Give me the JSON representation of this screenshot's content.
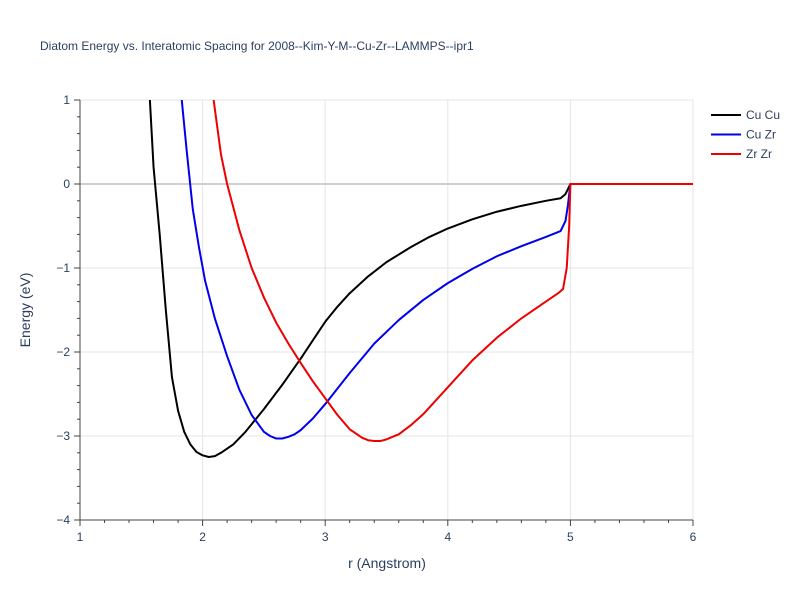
{
  "chart_data": {
    "type": "line",
    "title": "Diatom Energy vs. Interatomic Spacing for 2008--Kim-Y-M--Cu-Zr--LAMMPS--ipr1",
    "xlabel": "r (Angstrom)",
    "ylabel": "Energy (eV)",
    "xlim": [
      1,
      6
    ],
    "ylim": [
      -4,
      1
    ],
    "xticks": [
      1,
      2,
      3,
      4,
      5,
      6
    ],
    "yticks": [
      -4,
      -3,
      -2,
      -1,
      0,
      1
    ],
    "ytick_labels": [
      "−4",
      "−3",
      "−2",
      "−1",
      "0",
      "1"
    ],
    "grid": true,
    "legend_position": "top-right",
    "series": [
      {
        "name": "Cu Cu",
        "color": "#000000",
        "x": [
          1.57,
          1.6,
          1.65,
          1.7,
          1.75,
          1.8,
          1.85,
          1.9,
          1.95,
          2.0,
          2.05,
          2.1,
          2.15,
          2.25,
          2.35,
          2.5,
          2.65,
          2.8,
          2.9,
          3.0,
          3.1,
          3.2,
          3.35,
          3.5,
          3.7,
          3.85,
          4.0,
          4.2,
          4.4,
          4.6,
          4.8,
          4.92,
          4.96,
          5.0,
          5.2,
          5.5,
          5.8,
          6.0
        ],
        "y": [
          1.0,
          0.2,
          -0.6,
          -1.5,
          -2.3,
          -2.7,
          -2.95,
          -3.1,
          -3.19,
          -3.23,
          -3.25,
          -3.24,
          -3.2,
          -3.1,
          -2.95,
          -2.68,
          -2.39,
          -2.08,
          -1.86,
          -1.64,
          -1.46,
          -1.3,
          -1.1,
          -0.93,
          -0.75,
          -0.63,
          -0.53,
          -0.42,
          -0.33,
          -0.26,
          -0.2,
          -0.17,
          -0.12,
          0.0,
          0.0,
          0.0,
          0.0,
          0.0
        ]
      },
      {
        "name": "Cu Zr",
        "color": "#0000ee",
        "x": [
          1.83,
          1.87,
          1.92,
          1.97,
          2.02,
          2.1,
          2.2,
          2.3,
          2.4,
          2.5,
          2.55,
          2.6,
          2.65,
          2.7,
          2.75,
          2.8,
          2.9,
          3.0,
          3.2,
          3.4,
          3.6,
          3.8,
          4.0,
          4.2,
          4.4,
          4.6,
          4.8,
          4.92,
          4.96,
          4.98,
          5.0,
          5.3,
          5.6,
          6.0
        ],
        "y": [
          1.0,
          0.4,
          -0.3,
          -0.75,
          -1.15,
          -1.6,
          -2.05,
          -2.45,
          -2.75,
          -2.95,
          -3.0,
          -3.03,
          -3.03,
          -3.01,
          -2.98,
          -2.93,
          -2.79,
          -2.62,
          -2.25,
          -1.9,
          -1.62,
          -1.38,
          -1.18,
          -1.01,
          -0.86,
          -0.74,
          -0.63,
          -0.56,
          -0.44,
          -0.25,
          0.0,
          0.0,
          0.0,
          0.0
        ]
      },
      {
        "name": "Zr Zr",
        "color": "#ee0000",
        "x": [
          2.09,
          2.15,
          2.2,
          2.3,
          2.4,
          2.5,
          2.6,
          2.7,
          2.8,
          2.9,
          3.0,
          3.1,
          3.2,
          3.3,
          3.35,
          3.4,
          3.45,
          3.5,
          3.6,
          3.7,
          3.8,
          4.0,
          4.2,
          4.4,
          4.6,
          4.8,
          4.9,
          4.94,
          4.97,
          4.99,
          5.0,
          5.3,
          5.6,
          6.0
        ],
        "y": [
          1.0,
          0.35,
          0.0,
          -0.55,
          -1.0,
          -1.35,
          -1.65,
          -1.9,
          -2.13,
          -2.35,
          -2.55,
          -2.75,
          -2.92,
          -3.02,
          -3.05,
          -3.06,
          -3.06,
          -3.04,
          -2.98,
          -2.87,
          -2.74,
          -2.42,
          -2.1,
          -1.83,
          -1.6,
          -1.4,
          -1.3,
          -1.25,
          -1.0,
          -0.5,
          0.0,
          0.0,
          0.0,
          0.0
        ]
      }
    ]
  }
}
